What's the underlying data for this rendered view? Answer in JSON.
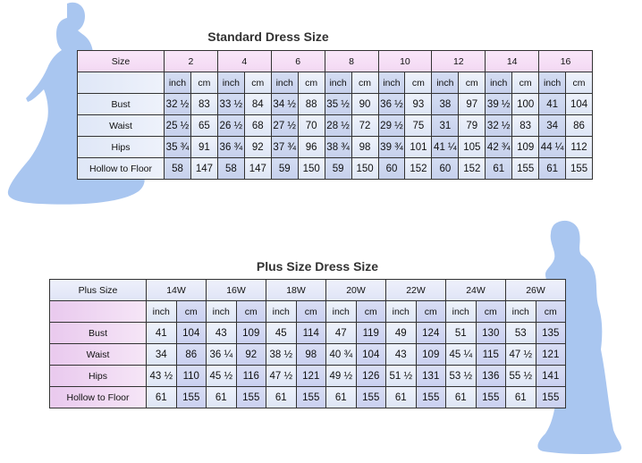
{
  "standard": {
    "title": "Standard Dress Size",
    "size_label": "Size",
    "sizes": [
      "2",
      "4",
      "6",
      "8",
      "10",
      "12",
      "14",
      "16"
    ],
    "unit_inch": "inch",
    "unit_cm": "cm",
    "rows": [
      {
        "label": "Bust",
        "values": [
          "32 ½",
          "83",
          "33 ½",
          "84",
          "34 ½",
          "88",
          "35 ½",
          "90",
          "36 ½",
          "93",
          "38",
          "97",
          "39 ½",
          "100",
          "41",
          "104"
        ]
      },
      {
        "label": "Waist",
        "values": [
          "25 ½",
          "65",
          "26 ½",
          "68",
          "27 ½",
          "70",
          "28 ½",
          "72",
          "29 ½",
          "75",
          "31",
          "79",
          "32 ½",
          "83",
          "34",
          "86"
        ]
      },
      {
        "label": "Hips",
        "values": [
          "35 ¾",
          "91",
          "36 ¾",
          "92",
          "37 ¾",
          "96",
          "38 ¾",
          "98",
          "39 ¾",
          "101",
          "41 ¼",
          "105",
          "42 ¾",
          "109",
          "44 ¼",
          "112"
        ]
      },
      {
        "label": "Hollow to Floor",
        "values": [
          "58",
          "147",
          "58",
          "147",
          "59",
          "150",
          "59",
          "150",
          "60",
          "152",
          "60",
          "152",
          "61",
          "155",
          "61",
          "155"
        ]
      }
    ]
  },
  "plus": {
    "title": "Plus Size Dress Size",
    "size_label": "Plus Size",
    "sizes": [
      "14W",
      "16W",
      "18W",
      "20W",
      "22W",
      "24W",
      "26W"
    ],
    "unit_inch": "inch",
    "unit_cm": "cm",
    "rows": [
      {
        "label": "Bust",
        "values": [
          "41",
          "104",
          "43",
          "109",
          "45",
          "114",
          "47",
          "119",
          "49",
          "124",
          "51",
          "130",
          "53",
          "135"
        ]
      },
      {
        "label": "Waist",
        "values": [
          "34",
          "86",
          "36 ¼",
          "92",
          "38 ½",
          "98",
          "40 ¾",
          "104",
          "43",
          "109",
          "45 ¼",
          "115",
          "47 ½",
          "121"
        ]
      },
      {
        "label": "Hips",
        "values": [
          "43 ½",
          "110",
          "45 ½",
          "116",
          "47 ½",
          "121",
          "49 ½",
          "126",
          "51 ½",
          "131",
          "53 ½",
          "136",
          "55 ½",
          "141"
        ]
      },
      {
        "label": "Hollow to Floor",
        "values": [
          "61",
          "155",
          "61",
          "155",
          "61",
          "155",
          "61",
          "155",
          "61",
          "155",
          "61",
          "155",
          "61",
          "155"
        ]
      }
    ]
  },
  "colors": {
    "silhouette": "#a9c6f0",
    "header_pink": "#f5dcf5",
    "cell_blue": "#e4ebf8"
  }
}
